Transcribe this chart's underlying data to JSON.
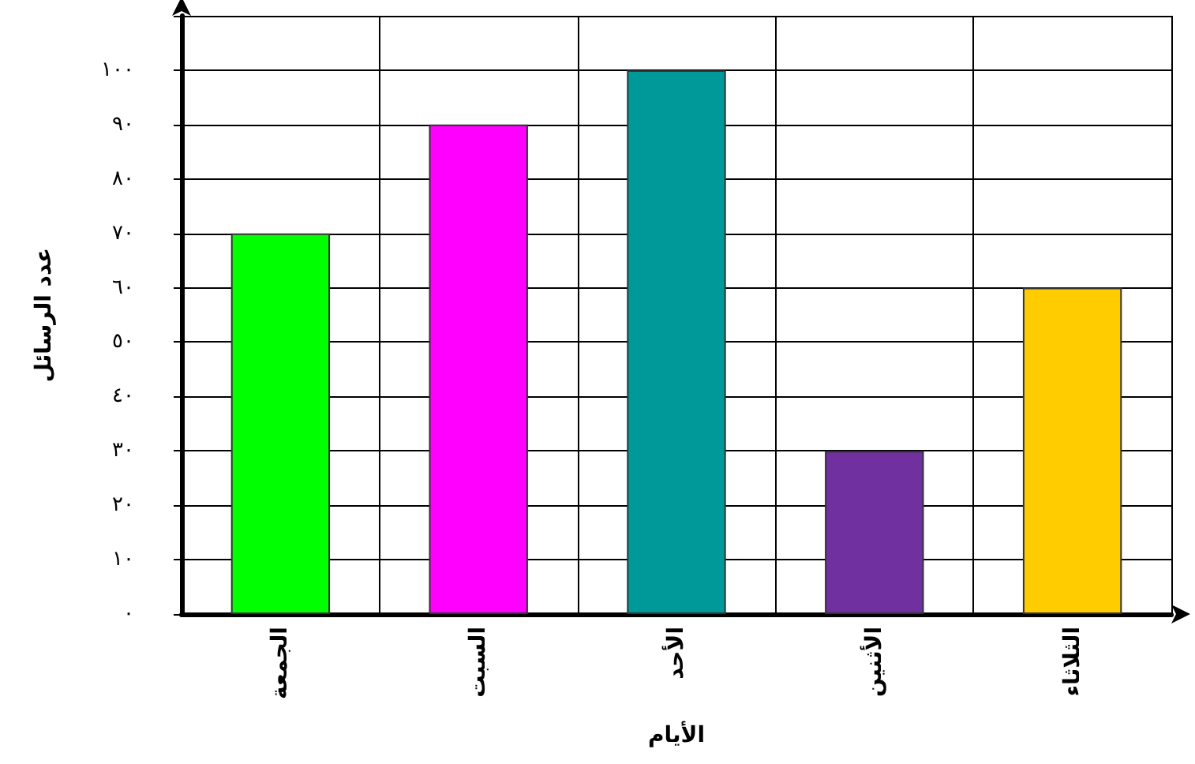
{
  "chart_data": {
    "type": "bar",
    "xlabel": "الأيام",
    "ylabel": "عدد الرسائل",
    "categories": [
      "الجمعة",
      "السبت",
      "الأحد",
      "الأثنين",
      "الثلاثاء"
    ],
    "values": [
      70,
      90,
      100,
      30,
      60
    ],
    "colors": [
      "#00ff00",
      "#ff00ff",
      "#009999",
      "#7030a0",
      "#ffcc00"
    ],
    "ylim": [
      0,
      110
    ],
    "yticks": [
      {
        "value": 0,
        "label": "٠"
      },
      {
        "value": 10,
        "label": "١٠"
      },
      {
        "value": 20,
        "label": "٢٠"
      },
      {
        "value": 30,
        "label": "٣٠"
      },
      {
        "value": 40,
        "label": "٤٠"
      },
      {
        "value": 50,
        "label": "٥٠"
      },
      {
        "value": 60,
        "label": "٦٠"
      },
      {
        "value": 70,
        "label": "٧٠"
      },
      {
        "value": 80,
        "label": "٨٠"
      },
      {
        "value": 90,
        "label": "٩٠"
      },
      {
        "value": 100,
        "label": "١٠٠"
      },
      {
        "value": 110,
        "label": null
      }
    ],
    "grid": true
  }
}
